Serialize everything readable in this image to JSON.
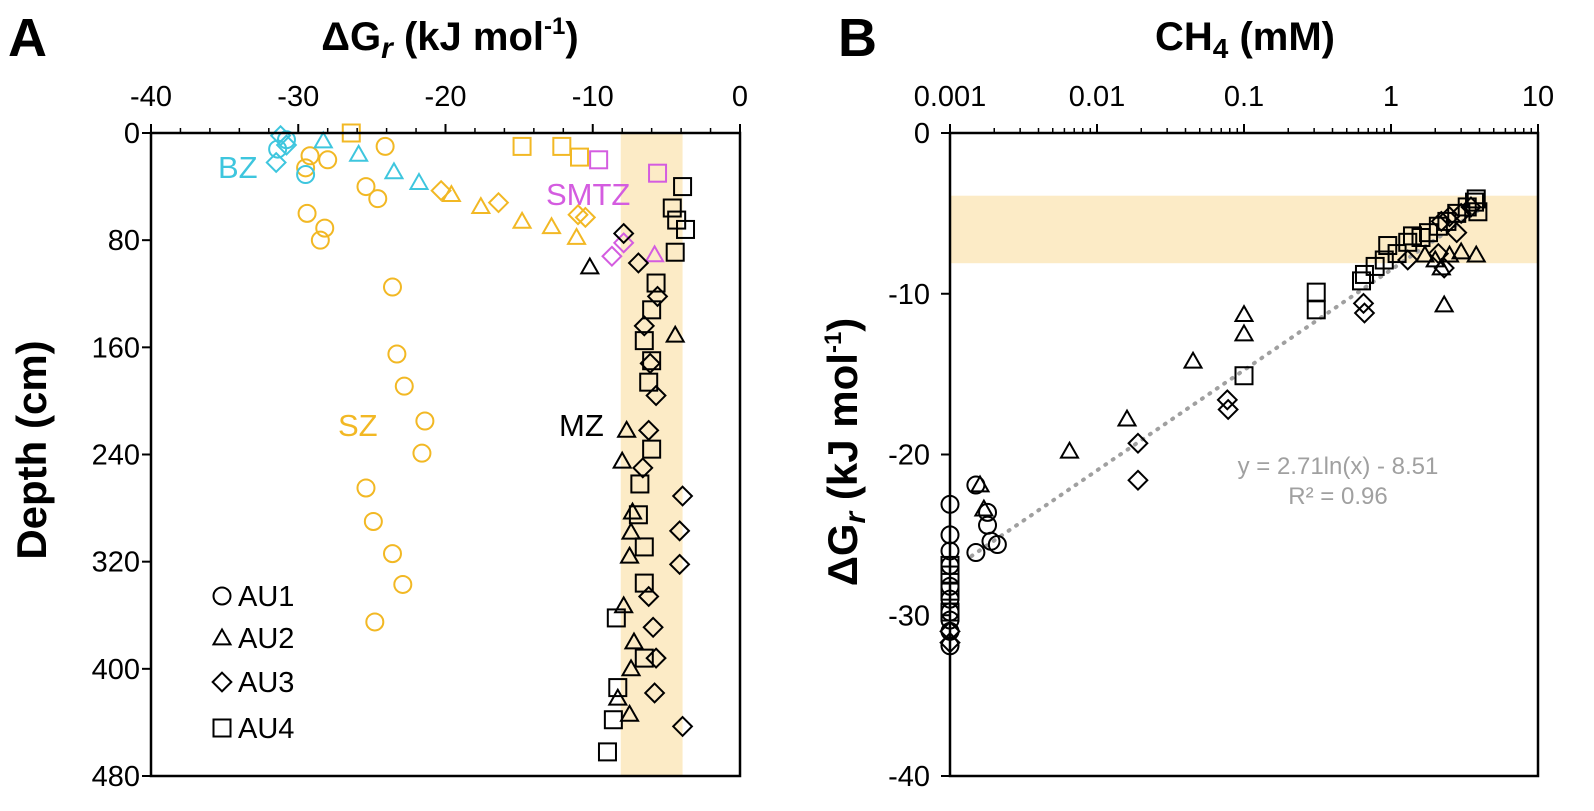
{
  "colors": {
    "black": "#000000",
    "sz": "#F2B824",
    "bz": "#3EC6DE",
    "smtz": "#D45CE0",
    "band": "#FCEBC6",
    "fit": "#A0A0A0"
  },
  "chart_data": [
    {
      "id": "A",
      "type": "scatter",
      "panel_label": "A",
      "title_pre": "ΔG",
      "title_sub": "r",
      "title_post": " (kJ mol",
      "title_sup": "-1",
      "title_end": ")",
      "ylabel": "Depth (cm)",
      "xlim": [
        -40,
        0
      ],
      "ylim": [
        0,
        480
      ],
      "x_ticks": [
        "-40",
        "-30",
        "-20",
        "-10",
        "0"
      ],
      "y_ticks": [
        "0",
        "80",
        "160",
        "240",
        "320",
        "400",
        "480"
      ],
      "band_x": [
        -8.1,
        -3.9
      ],
      "zone_labels": [
        "BZ",
        "SMTZ",
        "SZ",
        "MZ"
      ],
      "legend": [
        "AU1",
        "AU2",
        "AU3",
        "AU4"
      ],
      "series": [
        {
          "name": "AU1-SZ",
          "marker": "circle",
          "color": "sz",
          "points": [
            [
              -24.1,
              10
            ],
            [
              -28,
              20
            ],
            [
              -29.2,
              17
            ],
            [
              -29.5,
              26
            ],
            [
              -25.4,
              40
            ],
            [
              -24.6,
              49
            ],
            [
              -29.4,
              60
            ],
            [
              -28.2,
              71
            ],
            [
              -28.5,
              80
            ],
            [
              -23.6,
              115
            ],
            [
              -23.3,
              165
            ],
            [
              -22.8,
              189
            ],
            [
              -21.4,
              215
            ],
            [
              -21.6,
              239
            ],
            [
              -25.4,
              265
            ],
            [
              -24.9,
              290
            ],
            [
              -23.6,
              314
            ],
            [
              -22.9,
              337
            ],
            [
              -24.8,
              365
            ]
          ]
        },
        {
          "name": "AU1-BZ",
          "marker": "circle",
          "color": "bz",
          "points": [
            [
              -30.8,
              5
            ],
            [
              -31.4,
              12
            ],
            [
              -29.5,
              31
            ]
          ]
        },
        {
          "name": "AU2-BZ",
          "marker": "triangle",
          "color": "bz",
          "points": [
            [
              -28.3,
              6
            ],
            [
              -25.9,
              16
            ],
            [
              -23.5,
              29
            ],
            [
              -21.8,
              37
            ]
          ]
        },
        {
          "name": "AU2-SZ",
          "marker": "triangle",
          "color": "sz",
          "points": [
            [
              -19.6,
              46
            ],
            [
              -17.6,
              55
            ],
            [
              -14.8,
              66
            ],
            [
              -12.8,
              70
            ],
            [
              -11.1,
              78
            ]
          ]
        },
        {
          "name": "AU2-SMTZ",
          "marker": "triangle",
          "color": "smtz",
          "points": [
            [
              -5.8,
              91
            ]
          ]
        },
        {
          "name": "AU2-MZ",
          "marker": "triangle",
          "color": "black",
          "points": [
            [
              -10.2,
              100
            ],
            [
              -4.4,
              151
            ],
            [
              -7.7,
              222
            ],
            [
              -8,
              245
            ],
            [
              -7.3,
              283
            ],
            [
              -7.4,
              298
            ],
            [
              -7.5,
              316
            ],
            [
              -7.9,
              353
            ],
            [
              -7.2,
              380
            ],
            [
              -7.4,
              400
            ],
            [
              -8.3,
              422
            ],
            [
              -7.5,
              434
            ]
          ]
        },
        {
          "name": "AU3-BZ",
          "marker": "diamond",
          "color": "bz",
          "points": [
            [
              -31.2,
              2
            ],
            [
              -30.8,
              9
            ],
            [
              -31.5,
              22
            ]
          ]
        },
        {
          "name": "AU3-SZ",
          "marker": "diamond",
          "color": "sz",
          "points": [
            [
              -20.3,
              43
            ],
            [
              -16.4,
              52
            ],
            [
              -10.5,
              63
            ],
            [
              -11,
              61
            ]
          ]
        },
        {
          "name": "AU3-SMTZ",
          "marker": "diamond",
          "color": "smtz",
          "points": [
            [
              -7.9,
              82
            ],
            [
              -8.7,
              92
            ]
          ]
        },
        {
          "name": "AU3-MZ",
          "marker": "diamond",
          "color": "black",
          "points": [
            [
              -7.9,
              75
            ],
            [
              -6.9,
              97
            ],
            [
              -5.6,
              122
            ],
            [
              -6.5,
              144
            ],
            [
              -6.1,
              172
            ],
            [
              -5.7,
              196
            ],
            [
              -6.2,
              222
            ],
            [
              -6.6,
              250
            ],
            [
              -3.9,
              271
            ],
            [
              -4.1,
              297
            ],
            [
              -4.1,
              322
            ],
            [
              -6.2,
              346
            ],
            [
              -5.9,
              369
            ],
            [
              -5.7,
              392
            ],
            [
              -5.8,
              418
            ],
            [
              -3.9,
              443
            ]
          ]
        },
        {
          "name": "AU4-SZ",
          "marker": "square",
          "color": "sz",
          "points": [
            [
              -26.4,
              0
            ],
            [
              -14.8,
              10
            ],
            [
              -12.1,
              10
            ],
            [
              -10.9,
              18
            ]
          ]
        },
        {
          "name": "AU4-SMTZ",
          "marker": "square",
          "color": "smtz",
          "points": [
            [
              -9.6,
              20
            ],
            [
              -5.6,
              30
            ]
          ]
        },
        {
          "name": "AU4-MZ",
          "marker": "square",
          "color": "black",
          "points": [
            [
              -3.9,
              40
            ],
            [
              -4.6,
              56
            ],
            [
              -4.3,
              65
            ],
            [
              -3.7,
              72
            ],
            [
              -4.4,
              89
            ],
            [
              -5.7,
              112
            ],
            [
              -6,
              132
            ],
            [
              -6.5,
              155
            ],
            [
              -6,
              170
            ],
            [
              -6.2,
              186
            ],
            [
              -6,
              236
            ],
            [
              -6.8,
              262
            ],
            [
              -6.9,
              285
            ],
            [
              -6.5,
              309
            ],
            [
              -6.5,
              336
            ],
            [
              -8.4,
              362
            ],
            [
              -6.5,
              392
            ],
            [
              -8.3,
              414
            ],
            [
              -8.6,
              438
            ],
            [
              -9,
              462
            ]
          ]
        }
      ]
    },
    {
      "id": "B",
      "type": "scatter",
      "panel_label": "B",
      "title_pre": "CH",
      "title_sub": "4",
      "title_post": " (mM)",
      "ylabel_pre": "ΔG",
      "ylabel_sub": "r",
      "ylabel_post": " (kJ mol",
      "ylabel_sup": "-1",
      "ylabel_end": ")",
      "xscale": "log",
      "xlim": [
        0.001,
        10
      ],
      "ylim": [
        -40,
        0
      ],
      "x_ticks": [
        "0.001",
        "0.01",
        "0.1",
        "1",
        "10"
      ],
      "y_ticks": [
        "0",
        "-10",
        "-20",
        "-30",
        "-40"
      ],
      "band_y": [
        -8.1,
        -3.9
      ],
      "fit_equation": "y = 2.71ln(x) - 8.51",
      "fit_r2": "R² = 0.96",
      "fit": {
        "a": 2.71,
        "b": -8.51,
        "x_range": [
          0.0014,
          4
        ]
      },
      "series": [
        {
          "name": "AU1",
          "marker": "circle",
          "color": "black",
          "points": [
            [
              0.001,
              -23.1
            ],
            [
              0.001,
              -25
            ],
            [
              0.001,
              -26
            ],
            [
              0.001,
              -26.9
            ],
            [
              0.001,
              -28.2
            ],
            [
              0.001,
              -29
            ],
            [
              0.001,
              -29.8
            ],
            [
              0.001,
              -30.3
            ],
            [
              0.001,
              -31
            ],
            [
              0.001,
              -31.9
            ],
            [
              0.0015,
              -21.9
            ],
            [
              0.0015,
              -26.1
            ],
            [
              0.0018,
              -23.6
            ],
            [
              0.0018,
              -24.4
            ],
            [
              0.0019,
              -25.4
            ],
            [
              0.0021,
              -25.6
            ]
          ]
        },
        {
          "name": "AU2",
          "marker": "triangle",
          "color": "black",
          "points": [
            [
              0.0016,
              -21.9
            ],
            [
              0.0017,
              -23.4
            ],
            [
              0.0065,
              -19.8
            ],
            [
              0.016,
              -17.8
            ],
            [
              0.045,
              -14.2
            ],
            [
              0.1,
              -11.3
            ],
            [
              0.1,
              -12.5
            ],
            [
              2.3,
              -10.7
            ],
            [
              2.2,
              -8.4
            ],
            [
              2.5,
              -7.6
            ],
            [
              3,
              -7.4
            ],
            [
              3.8,
              -7.6
            ],
            [
              2,
              -7.9
            ],
            [
              1.7,
              -7.6
            ]
          ]
        },
        {
          "name": "AU3",
          "marker": "diamond",
          "color": "black",
          "points": [
            [
              0.001,
              -31
            ],
            [
              0.001,
              -31.7
            ],
            [
              0.019,
              -19.3
            ],
            [
              0.019,
              -21.6
            ],
            [
              0.077,
              -16.6
            ],
            [
              0.078,
              -17.2
            ],
            [
              0.65,
              -10.6
            ],
            [
              0.66,
              -11.2
            ],
            [
              1.3,
              -7.9
            ],
            [
              2.1,
              -7.5
            ],
            [
              2.3,
              -8.4
            ],
            [
              2.8,
              -6.2
            ],
            [
              2.5,
              -5.2
            ],
            [
              3,
              -5
            ],
            [
              3.5,
              -4.6
            ],
            [
              2.2,
              -5.5
            ]
          ]
        },
        {
          "name": "AU4",
          "marker": "square",
          "color": "black",
          "points": [
            [
              0.001,
              -26.9
            ],
            [
              0.001,
              -27.5
            ],
            [
              0.001,
              -28.5
            ],
            [
              0.001,
              -29.8
            ],
            [
              0.1,
              -15.1
            ],
            [
              0.31,
              -9.9
            ],
            [
              0.31,
              -11
            ],
            [
              0.63,
              -9.2
            ],
            [
              0.66,
              -8.8
            ],
            [
              0.78,
              -8.3
            ],
            [
              0.9,
              -7.9
            ],
            [
              0.95,
              -7
            ],
            [
              1.1,
              -7.5
            ],
            [
              1.3,
              -6.8
            ],
            [
              1.4,
              -6.4
            ],
            [
              1.6,
              -6.5
            ],
            [
              1.8,
              -6.2
            ],
            [
              2.1,
              -5.8
            ],
            [
              2.4,
              -5.5
            ],
            [
              2.8,
              -5
            ],
            [
              3.3,
              -4.6
            ],
            [
              3.7,
              -4.3
            ],
            [
              3.9,
              -4.9
            ],
            [
              3.8,
              -4.1
            ]
          ]
        }
      ]
    }
  ]
}
